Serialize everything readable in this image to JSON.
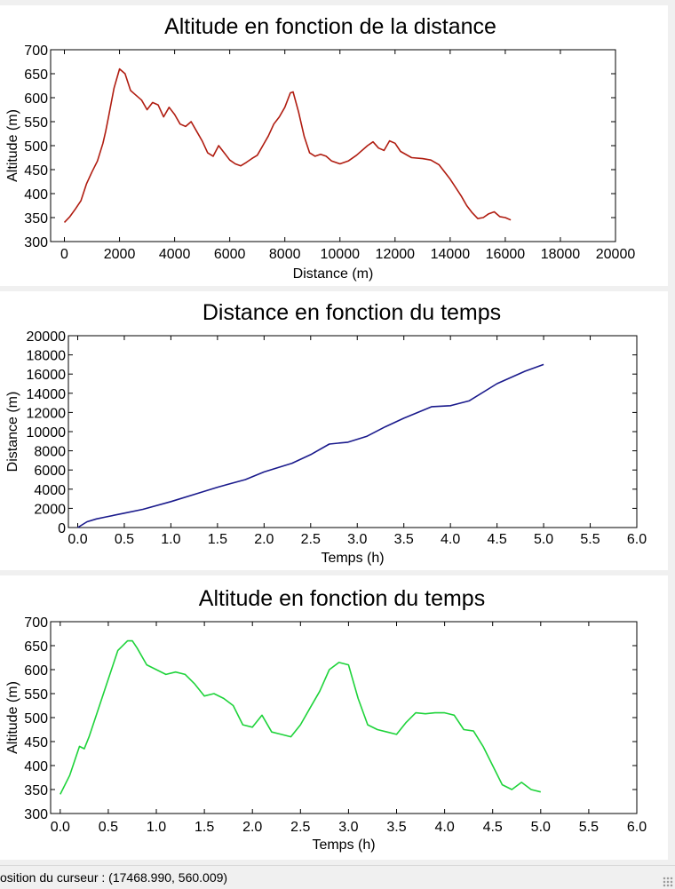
{
  "charts": [
    {
      "title": "Altitude en fonction de la distance",
      "xlabel": "Distance (m)",
      "ylabel": "Altitude (m)",
      "color": "#b01c10",
      "xticks": [
        "0",
        "2000",
        "4000",
        "6000",
        "8000",
        "10000",
        "12000",
        "14000",
        "16000",
        "18000",
        "20000"
      ],
      "yticks": [
        "300",
        "350",
        "400",
        "450",
        "500",
        "550",
        "600",
        "650",
        "700"
      ]
    },
    {
      "title": "Distance en fonction du temps",
      "xlabel": "Temps (h)",
      "ylabel": "Distance (m)",
      "color": "#1a1a8c",
      "xticks": [
        "0.0",
        "0.5",
        "1.0",
        "1.5",
        "2.0",
        "2.5",
        "3.0",
        "3.5",
        "4.0",
        "4.5",
        "5.0",
        "5.5",
        "6.0"
      ],
      "yticks": [
        "0",
        "2000",
        "4000",
        "6000",
        "8000",
        "10000",
        "12000",
        "14000",
        "16000",
        "18000",
        "20000"
      ]
    },
    {
      "title": "Altitude en fonction du temps",
      "xlabel": "Temps (h)",
      "ylabel": "Altitude (m)",
      "color": "#1ed33a",
      "xticks": [
        "0.0",
        "0.5",
        "1.0",
        "1.5",
        "2.0",
        "2.5",
        "3.0",
        "3.5",
        "4.0",
        "4.5",
        "5.0",
        "5.5",
        "6.0"
      ],
      "yticks": [
        "300",
        "350",
        "400",
        "450",
        "500",
        "550",
        "600",
        "650",
        "700"
      ]
    }
  ],
  "chart_data": [
    {
      "type": "line",
      "title": "Altitude en fonction de la distance",
      "xlabel": "Distance (m)",
      "ylabel": "Altitude (m)",
      "xlim": [
        -500,
        20000
      ],
      "ylim": [
        300,
        700
      ],
      "grid": false,
      "series": [
        {
          "x": [
            0,
            200,
            400,
            600,
            800,
            1000,
            1200,
            1400,
            1500,
            1600,
            1700,
            1800,
            2000,
            2200,
            2400,
            2600,
            2800,
            3000,
            3200,
            3400,
            3600,
            3800,
            4000,
            4200,
            4400,
            4600,
            4800,
            5000,
            5200,
            5400,
            5600,
            5800,
            6000,
            6200,
            6400,
            6600,
            6800,
            7000,
            7200,
            7400,
            7600,
            7800,
            8000,
            8200,
            8300,
            8500,
            8700,
            8900,
            9100,
            9300,
            9500,
            9700,
            10000,
            10300,
            10600,
            11000,
            11200,
            11400,
            11600,
            11800,
            12000,
            12200,
            12600,
            13000,
            13300,
            13600,
            14000,
            14400,
            14600,
            14800,
            15000,
            15200,
            15400,
            15600,
            15800,
            16000,
            16200
          ],
          "y": [
            340,
            352,
            368,
            385,
            420,
            445,
            468,
            505,
            530,
            560,
            590,
            620,
            660,
            650,
            615,
            605,
            595,
            575,
            590,
            585,
            560,
            580,
            565,
            545,
            540,
            550,
            530,
            510,
            485,
            478,
            500,
            485,
            470,
            462,
            458,
            465,
            473,
            480,
            500,
            520,
            545,
            560,
            580,
            610,
            612,
            570,
            520,
            485,
            478,
            482,
            478,
            468,
            462,
            468,
            480,
            500,
            508,
            495,
            490,
            510,
            505,
            488,
            475,
            473,
            470,
            460,
            430,
            395,
            375,
            360,
            348,
            350,
            358,
            362,
            352,
            350,
            345
          ]
        }
      ]
    },
    {
      "type": "line",
      "title": "Distance en fonction du temps",
      "xlabel": "Temps (h)",
      "ylabel": "Distance (m)",
      "xlim": [
        -0.1,
        6.0
      ],
      "ylim": [
        0,
        20000
      ],
      "grid": false,
      "series": [
        {
          "x": [
            0.0,
            0.1,
            0.2,
            0.3,
            0.5,
            0.7,
            1.0,
            1.3,
            1.5,
            1.8,
            2.0,
            2.3,
            2.5,
            2.7,
            2.9,
            3.1,
            3.3,
            3.5,
            3.8,
            4.0,
            4.2,
            4.5,
            4.8,
            5.0
          ],
          "y": [
            0,
            600,
            900,
            1100,
            1500,
            1900,
            2700,
            3600,
            4200,
            5000,
            5800,
            6700,
            7600,
            8700,
            8900,
            9500,
            10500,
            11400,
            12600,
            12700,
            13200,
            15000,
            16300,
            17000
          ]
        }
      ]
    },
    {
      "type": "line",
      "title": "Altitude en fonction du temps",
      "xlabel": "Temps (h)",
      "ylabel": "Altitude (m)",
      "xlim": [
        -0.1,
        6.0
      ],
      "ylim": [
        300,
        700
      ],
      "grid": false,
      "series": [
        {
          "x": [
            0.0,
            0.1,
            0.2,
            0.25,
            0.3,
            0.4,
            0.5,
            0.6,
            0.7,
            0.75,
            0.8,
            0.9,
            1.0,
            1.1,
            1.2,
            1.3,
            1.4,
            1.5,
            1.6,
            1.7,
            1.8,
            1.9,
            2.0,
            2.1,
            2.2,
            2.3,
            2.4,
            2.5,
            2.6,
            2.7,
            2.8,
            2.9,
            3.0,
            3.1,
            3.2,
            3.3,
            3.4,
            3.5,
            3.6,
            3.7,
            3.8,
            3.9,
            4.0,
            4.1,
            4.2,
            4.3,
            4.4,
            4.5,
            4.6,
            4.7,
            4.8,
            4.9,
            5.0
          ],
          "y": [
            340,
            380,
            440,
            435,
            460,
            520,
            580,
            640,
            660,
            660,
            645,
            610,
            600,
            590,
            595,
            590,
            570,
            545,
            550,
            540,
            525,
            485,
            480,
            505,
            470,
            465,
            460,
            485,
            520,
            555,
            600,
            615,
            610,
            540,
            485,
            475,
            470,
            465,
            490,
            510,
            508,
            510,
            510,
            505,
            475,
            472,
            440,
            400,
            360,
            350,
            365,
            350,
            345
          ]
        }
      ]
    }
  ],
  "status": {
    "text": "osition du curseur : (17468.990, 560.009)"
  }
}
